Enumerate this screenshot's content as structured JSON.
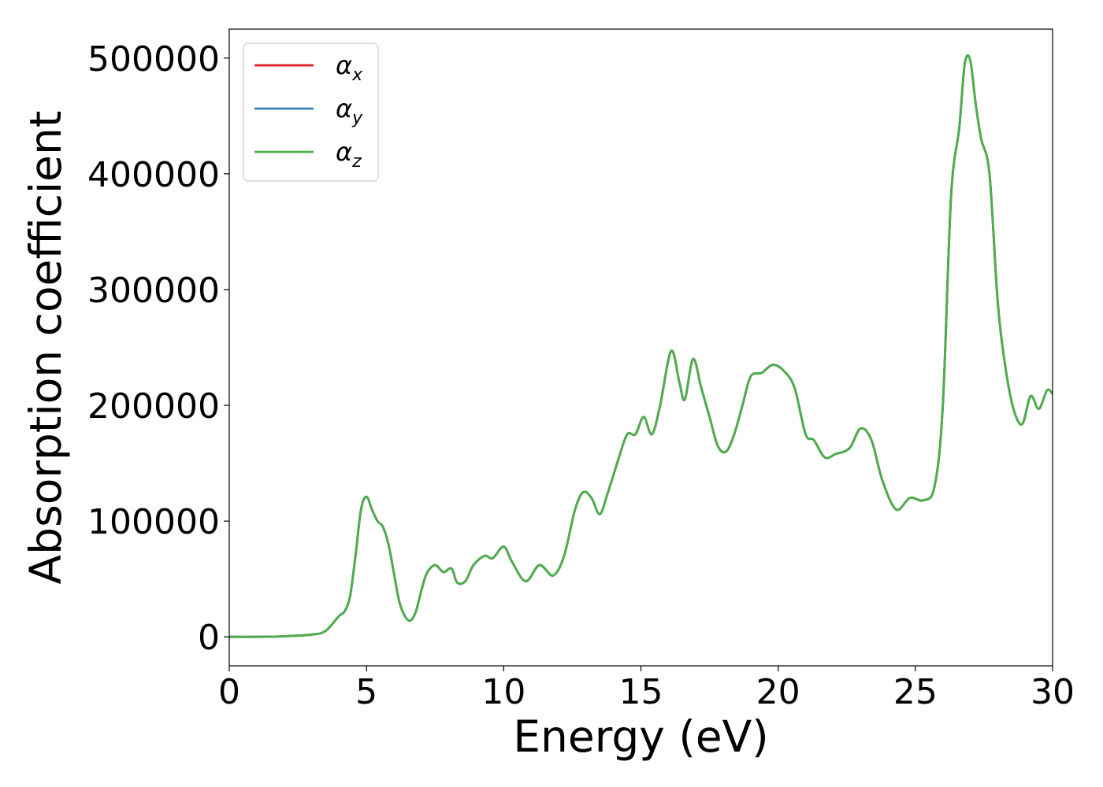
{
  "chart_data": {
    "type": "line",
    "title": "",
    "xlabel": "Energy (eV)",
    "ylabel": "Absorption coefficient",
    "xlim": [
      0,
      30
    ],
    "ylim": [
      -25000,
      525000
    ],
    "x_ticks": [
      "0",
      "5",
      "10",
      "15",
      "20",
      "25",
      "30"
    ],
    "y_ticks": [
      "0",
      "100000",
      "200000",
      "300000",
      "400000",
      "500000"
    ],
    "grid": false,
    "legend_position": "top-left",
    "series": [
      {
        "name": "α",
        "subscript": "x",
        "color": "#e41a1c",
        "values_ref": "shared"
      },
      {
        "name": "α",
        "subscript": "y",
        "color": "#377eb8",
        "values_ref": "shared"
      },
      {
        "name": "α",
        "subscript": "z",
        "color": "#4daf4a",
        "values_ref": "shared"
      }
    ],
    "x": [
      0,
      1,
      2,
      3,
      3.5,
      4,
      4.2,
      4.4,
      4.6,
      4.8,
      5.0,
      5.2,
      5.4,
      5.6,
      5.8,
      6.0,
      6.2,
      6.4,
      6.6,
      6.8,
      7.0,
      7.2,
      7.5,
      7.8,
      8.1,
      8.3,
      8.6,
      8.9,
      9.3,
      9.6,
      10.0,
      10.3,
      10.8,
      11.3,
      11.8,
      12.2,
      12.6,
      12.9,
      13.2,
      13.5,
      13.8,
      14.2,
      14.5,
      14.8,
      15.1,
      15.4,
      15.7,
      16.1,
      16.4,
      16.6,
      16.9,
      17.2,
      17.5,
      17.8,
      18.1,
      18.4,
      18.7,
      19.0,
      19.4,
      19.8,
      20.2,
      20.6,
      21.0,
      21.3,
      21.7,
      22.1,
      22.6,
      23.0,
      23.4,
      23.8,
      24.3,
      24.8,
      25.3,
      25.7,
      26.0,
      26.3,
      26.6,
      26.8,
      27.0,
      27.2,
      27.4,
      27.7,
      28.0,
      28.3,
      28.6,
      28.9,
      29.2,
      29.5,
      29.8,
      30.0
    ],
    "values": [
      0,
      0,
      500,
      2000,
      5000,
      18000,
      22000,
      35000,
      70000,
      110000,
      121000,
      110000,
      100000,
      95000,
      80000,
      55000,
      30000,
      18000,
      14000,
      22000,
      40000,
      55000,
      62000,
      56000,
      59000,
      47000,
      48000,
      62000,
      70000,
      68000,
      78000,
      65000,
      48000,
      62000,
      53000,
      70000,
      110000,
      125000,
      120000,
      106000,
      125000,
      155000,
      175000,
      175000,
      190000,
      175000,
      200000,
      247000,
      220000,
      205000,
      240000,
      215000,
      190000,
      165000,
      160000,
      175000,
      200000,
      225000,
      228000,
      235000,
      230000,
      215000,
      175000,
      170000,
      155000,
      158000,
      163000,
      180000,
      170000,
      135000,
      110000,
      120000,
      118000,
      130000,
      200000,
      380000,
      440000,
      495000,
      498000,
      460000,
      430000,
      400000,
      290000,
      230000,
      195000,
      184000,
      208000,
      197000,
      213000,
      210000
    ]
  }
}
